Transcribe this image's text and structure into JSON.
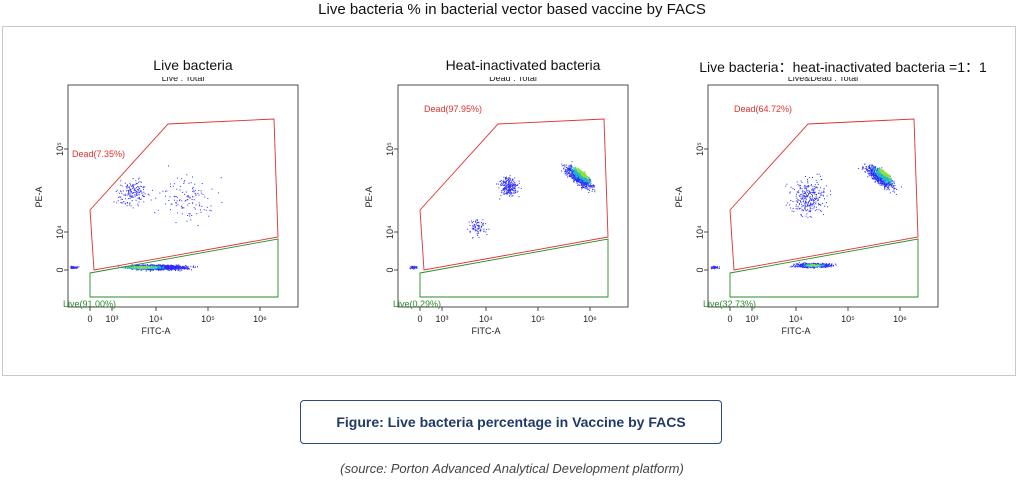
{
  "title": "Live bacteria % in bacterial vector based vaccine by FACS",
  "caption": "Figure:  Live bacteria percentage in Vaccine by FACS",
  "source": "(source: Porton Advanced Analytical Development platform)",
  "colors": {
    "dead_gate": "#e03030",
    "live_gate": "#2a8a2a",
    "caption_border": "#2d4a7a"
  },
  "chart_data": [
    {
      "type": "scatter",
      "title": "Live bacteria",
      "subtitle": "Live : Total",
      "xlabel": "FITC-A",
      "ylabel": "PE-A",
      "x_ticks": [
        "0",
        "10³",
        "10⁴",
        "10⁵",
        "10⁶"
      ],
      "y_ticks": [
        "0",
        "10⁴",
        "10⁵"
      ],
      "gates": [
        {
          "name": "Dead",
          "label": "Dead(7.35%)",
          "percent": 7.35
        },
        {
          "name": "Live",
          "label": "Live(91.00%)",
          "percent": 91.0
        }
      ]
    },
    {
      "type": "scatter",
      "title": "Heat-inactivated bacteria",
      "subtitle": "Dead : Total",
      "xlabel": "FITC-A",
      "ylabel": "PE-A",
      "x_ticks": [
        "0",
        "10³",
        "10⁴",
        "10⁵",
        "10⁶"
      ],
      "y_ticks": [
        "0",
        "10⁴",
        "10⁵"
      ],
      "gates": [
        {
          "name": "Dead",
          "label": "Dead(97.95%)",
          "percent": 97.95
        },
        {
          "name": "Live",
          "label": "Live(0.29%)",
          "percent": 0.29
        }
      ]
    },
    {
      "type": "scatter",
      "title": "Live bacteria：heat-inactivated bacteria =1：1",
      "subtitle": "Live&Dead : Total",
      "xlabel": "FITC-A",
      "ylabel": "PE-A",
      "x_ticks": [
        "0",
        "10³",
        "10⁴",
        "10⁵",
        "10⁶"
      ],
      "y_ticks": [
        "0",
        "10⁴",
        "10⁵"
      ],
      "gates": [
        {
          "name": "Dead",
          "label": "Dead(64.72%)",
          "percent": 64.72
        },
        {
          "name": "Live",
          "label": "Live(32.73%)",
          "percent": 32.73
        }
      ]
    }
  ]
}
